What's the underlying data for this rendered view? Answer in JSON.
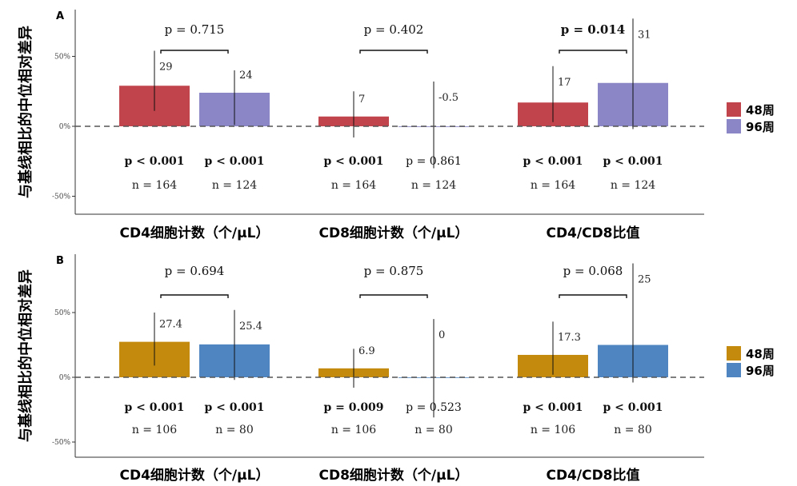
{
  "chart_data": [
    {
      "panel": "A",
      "type": "bar",
      "ylabel": "与基线相比的中位相对差异",
      "ylim": [
        -60,
        90
      ],
      "yticks": [
        -50,
        0,
        50
      ],
      "ytick_labels": [
        "-50%",
        "0%",
        "50%"
      ],
      "categories": [
        "CD4细胞计数（个/μL）",
        "CD8细胞计数（个/μL）",
        "CD4/CD8比值"
      ],
      "legend": [
        "48周",
        "96周"
      ],
      "colors": [
        "#c1434b",
        "#8b87c6"
      ],
      "series": [
        {
          "name": "48周",
          "values": [
            29,
            7,
            17
          ],
          "labels": [
            "29",
            "7",
            "17"
          ],
          "err_low": [
            11,
            -8,
            3
          ],
          "err_high": [
            54,
            25,
            43
          ],
          "p": [
            "p < 0.001",
            "p < 0.001",
            "p < 0.001"
          ],
          "p_bold": [
            true,
            true,
            true
          ],
          "n": [
            "n = 164",
            "n = 164",
            "n = 164"
          ]
        },
        {
          "name": "96周",
          "values": [
            24,
            -0.5,
            31
          ],
          "labels": [
            "24",
            "-0.5",
            "31"
          ],
          "err_low": [
            1,
            -30,
            -2
          ],
          "err_high": [
            40,
            32,
            77
          ],
          "p": [
            "p < 0.001",
            "p = 0.861",
            "p < 0.001"
          ],
          "p_bold": [
            true,
            false,
            true
          ],
          "n": [
            "n = 124",
            "n = 124",
            "n = 124"
          ]
        }
      ],
      "comparisons": [
        "p = 0.715",
        "p = 0.402",
        "p = 0.014"
      ],
      "comparison_bold": [
        false,
        false,
        true
      ]
    },
    {
      "panel": "B",
      "type": "bar",
      "ylabel": "与基线相比的中位相对差异",
      "ylim": [
        -60,
        90
      ],
      "yticks": [
        -50,
        0,
        50
      ],
      "ytick_labels": [
        "-50%",
        "0%",
        "50%"
      ],
      "categories": [
        "CD4细胞计数（个/μL）",
        "CD8细胞计数（个/μL）",
        "CD4/CD8比值"
      ],
      "legend": [
        "48周",
        "96周"
      ],
      "colors": [
        "#c38a0e",
        "#4f86c2"
      ],
      "series": [
        {
          "name": "48周",
          "values": [
            27.4,
            6.9,
            17.3
          ],
          "labels": [
            "27.4",
            "6.9",
            "17.3"
          ],
          "err_low": [
            9,
            -8,
            2
          ],
          "err_high": [
            50,
            22,
            43
          ],
          "p": [
            "p < 0.001",
            "p = 0.009",
            "p < 0.001"
          ],
          "p_bold": [
            true,
            true,
            true
          ],
          "n": [
            "n = 106",
            "n = 106",
            "n = 106"
          ]
        },
        {
          "name": "96周",
          "values": [
            25.4,
            0,
            25
          ],
          "labels": [
            "25.4",
            "0",
            "25"
          ],
          "err_low": [
            -2,
            -31,
            -4
          ],
          "err_high": [
            52,
            45,
            88
          ],
          "p": [
            "p < 0.001",
            "p = 0.523",
            "p < 0.001"
          ],
          "p_bold": [
            true,
            false,
            true
          ],
          "n": [
            "n = 80",
            "n = 80",
            "n = 80"
          ]
        }
      ],
      "comparisons": [
        "p = 0.694",
        "p = 0.875",
        "p = 0.068"
      ],
      "comparison_bold": [
        false,
        false,
        false
      ]
    }
  ]
}
